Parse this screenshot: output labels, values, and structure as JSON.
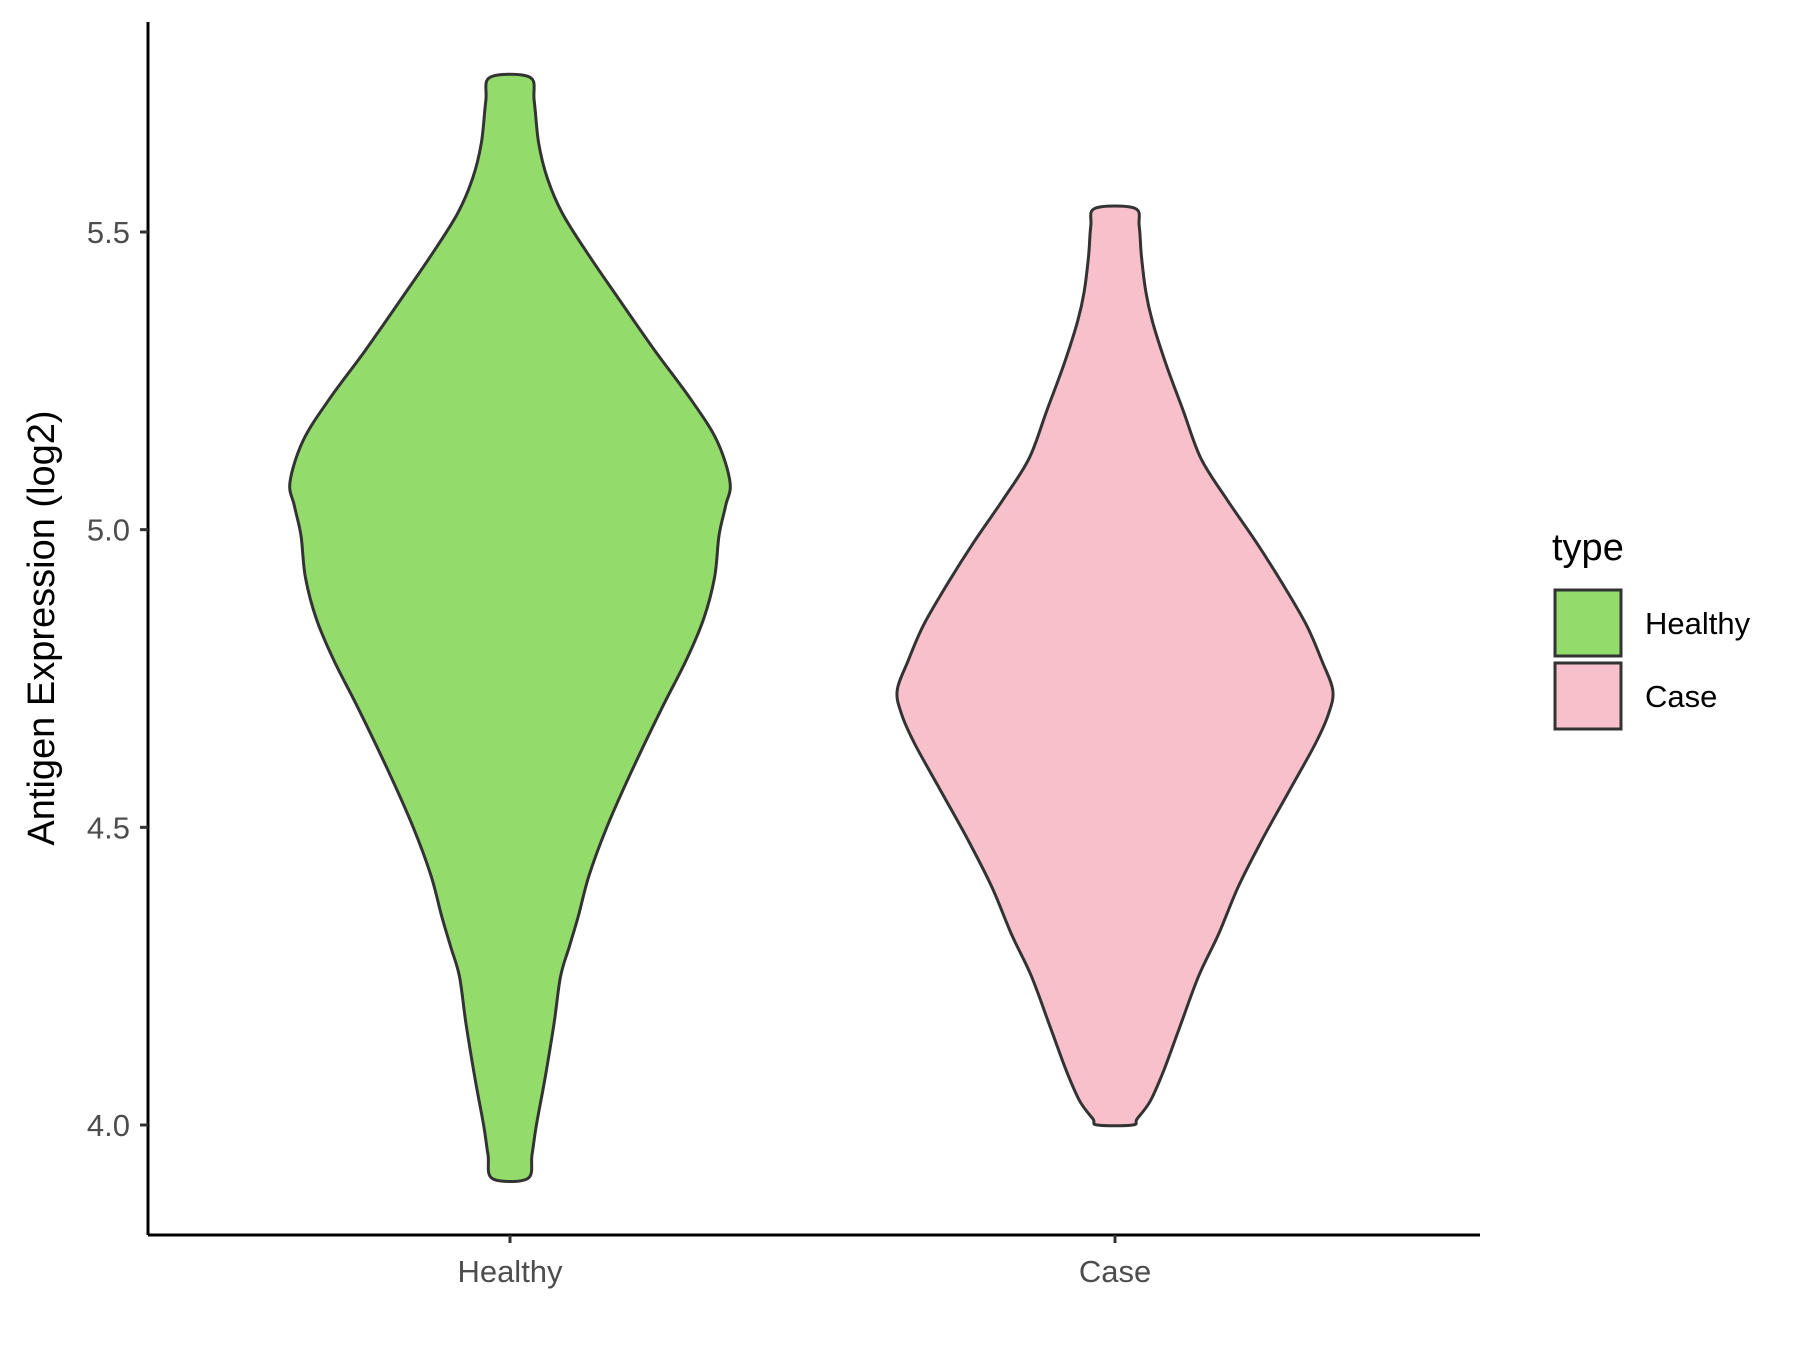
{
  "chart_data": {
    "type": "violin",
    "title": "",
    "xlabel": "",
    "ylabel": "Antigen Expression (log2)",
    "categories": [
      "Healthy",
      "Case"
    ],
    "ylim": [
      3.81,
      5.85
    ],
    "yticks": [
      "4.0",
      "4.5",
      "5.0",
      "5.5"
    ],
    "grid": false,
    "legend": {
      "title": "type",
      "position": "right",
      "entries": [
        {
          "label": "Healthy",
          "color": "#93dc6b"
        },
        {
          "label": "Case",
          "color": "#f7c0cb"
        }
      ]
    },
    "outline_color": "#333333",
    "series": [
      {
        "name": "Healthy",
        "color": "#93dc6b",
        "min": 3.91,
        "max": 5.76,
        "density": [
          [
            5.76,
            0.09
          ],
          [
            5.72,
            0.11
          ],
          [
            5.65,
            0.13
          ],
          [
            5.59,
            0.17
          ],
          [
            5.53,
            0.24
          ],
          [
            5.46,
            0.36
          ],
          [
            5.39,
            0.49
          ],
          [
            5.3,
            0.66
          ],
          [
            5.22,
            0.82
          ],
          [
            5.15,
            0.94
          ],
          [
            5.08,
            1.0
          ],
          [
            5.04,
            0.98
          ],
          [
            4.99,
            0.95
          ],
          [
            4.92,
            0.93
          ],
          [
            4.85,
            0.88
          ],
          [
            4.78,
            0.8
          ],
          [
            4.7,
            0.69
          ],
          [
            4.6,
            0.56
          ],
          [
            4.5,
            0.44
          ],
          [
            4.42,
            0.36
          ],
          [
            4.35,
            0.31
          ],
          [
            4.3,
            0.27
          ],
          [
            4.25,
            0.23
          ],
          [
            4.17,
            0.2
          ],
          [
            4.08,
            0.16
          ],
          [
            4.0,
            0.12
          ],
          [
            3.95,
            0.1
          ],
          [
            3.91,
            0.08
          ]
        ]
      },
      {
        "name": "Case",
        "color": "#f7c0cb",
        "min": 4.0,
        "max": 5.54,
        "density": [
          [
            5.54,
            0.09
          ],
          [
            5.51,
            0.11
          ],
          [
            5.46,
            0.12
          ],
          [
            5.4,
            0.14
          ],
          [
            5.35,
            0.17
          ],
          [
            5.28,
            0.23
          ],
          [
            5.2,
            0.31
          ],
          [
            5.12,
            0.39
          ],
          [
            5.05,
            0.51
          ],
          [
            4.98,
            0.64
          ],
          [
            4.91,
            0.76
          ],
          [
            4.84,
            0.87
          ],
          [
            4.78,
            0.94
          ],
          [
            4.73,
            0.99
          ],
          [
            4.69,
            0.97
          ],
          [
            4.64,
            0.91
          ],
          [
            4.56,
            0.79
          ],
          [
            4.48,
            0.67
          ],
          [
            4.4,
            0.56
          ],
          [
            4.32,
            0.47
          ],
          [
            4.25,
            0.38
          ],
          [
            4.16,
            0.29
          ],
          [
            4.09,
            0.22
          ],
          [
            4.04,
            0.16
          ],
          [
            4.01,
            0.1
          ],
          [
            4.0,
            0.08
          ]
        ]
      }
    ]
  }
}
